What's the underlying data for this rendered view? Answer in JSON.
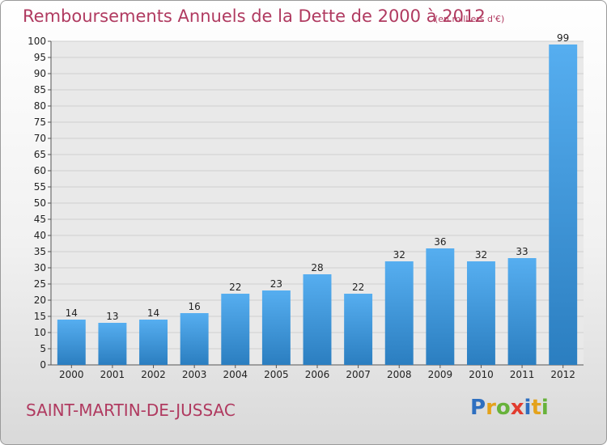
{
  "chart_data": {
    "type": "bar",
    "title": "Remboursements Annuels de la Dette de 2000 à 2012",
    "subtitle": "(en milliers d'€)",
    "categories": [
      "2000",
      "2001",
      "2002",
      "2003",
      "2004",
      "2005",
      "2006",
      "2007",
      "2008",
      "2009",
      "2010",
      "2011",
      "2012"
    ],
    "values": [
      14,
      13,
      14,
      16,
      22,
      23,
      28,
      22,
      32,
      36,
      32,
      33,
      99
    ],
    "ylim": [
      0,
      100
    ],
    "ytick_step": 5,
    "grid": true,
    "bar_color": "#3f94d6"
  },
  "footer": {
    "place_name": "SAINT-MARTIN-DE-JUSSAC",
    "logo_letters": [
      {
        "ch": "P",
        "color": "#2e6fc0"
      },
      {
        "ch": "r",
        "color": "#e4a21b"
      },
      {
        "ch": "o",
        "color": "#67b23a"
      },
      {
        "ch": "x",
        "color": "#e23c2f"
      },
      {
        "ch": "i",
        "color": "#2e6fc0"
      },
      {
        "ch": "t",
        "color": "#e4a21b"
      },
      {
        "ch": "i",
        "color": "#67b23a"
      }
    ]
  }
}
